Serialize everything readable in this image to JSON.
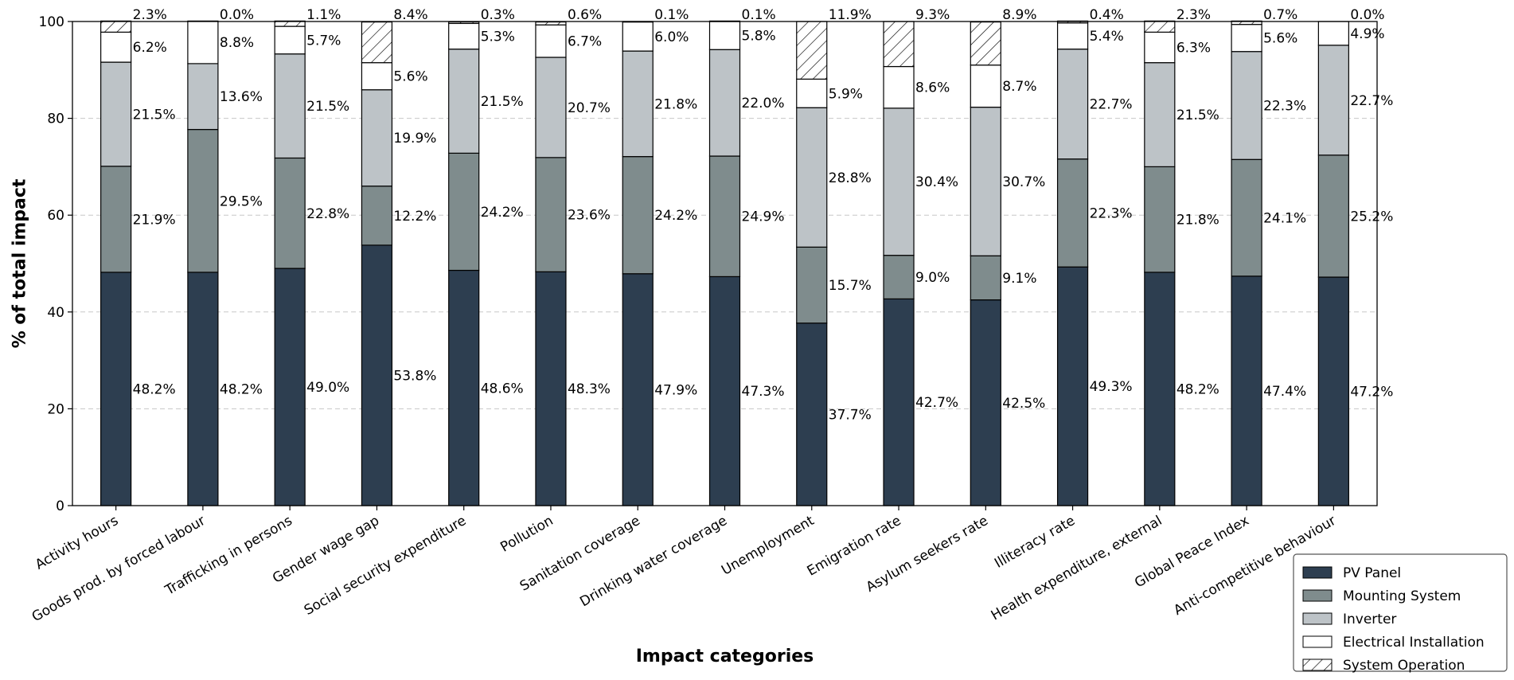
{
  "chart_data": {
    "type": "bar",
    "stacked": true,
    "title": "",
    "xlabel": "Impact categories",
    "ylabel": "% of total impact",
    "ylim": [
      0,
      100
    ],
    "yticks": [
      "0",
      "20",
      "40",
      "60",
      "80",
      "100"
    ],
    "grid": "y-dashed",
    "legend_position": "bottom-right",
    "categories": [
      "Activity hours",
      "Goods prod. by forced labour",
      "Trafficking in persons",
      "Gender wage gap",
      "Social security expenditure",
      "Pollution",
      "Sanitation coverage",
      "Drinking water coverage",
      "Unemployment",
      "Emigration rate",
      "Asylum seekers rate",
      "Illiteracy rate",
      "Health expenditure, external",
      "Global Peace Index",
      "Anti-competitive behaviour"
    ],
    "series": [
      {
        "name": "PV Panel",
        "color": "#2d3e50",
        "hatch": false,
        "values": [
          48.2,
          48.2,
          49.0,
          53.8,
          48.6,
          48.3,
          47.9,
          47.3,
          37.7,
          42.7,
          42.5,
          49.3,
          48.2,
          47.4,
          47.2
        ],
        "labels": [
          "48.2%",
          "48.2%",
          "49.0%",
          "53.8%",
          "48.6%",
          "48.3%",
          "47.9%",
          "47.3%",
          "37.7%",
          "42.7%",
          "42.5%",
          "49.3%",
          "48.2%",
          "47.4%",
          "47.2%"
        ]
      },
      {
        "name": "Mounting System",
        "color": "#7f8c8d",
        "hatch": false,
        "values": [
          21.9,
          29.5,
          22.8,
          12.2,
          24.2,
          23.6,
          24.2,
          24.9,
          15.7,
          9.0,
          9.1,
          22.3,
          21.8,
          24.1,
          25.2
        ],
        "labels": [
          "21.9%",
          "29.5%",
          "22.8%",
          "12.2%",
          "24.2%",
          "23.6%",
          "24.2%",
          "24.9%",
          "15.7%",
          "9.0%",
          "9.1%",
          "22.3%",
          "21.8%",
          "24.1%",
          "25.2%"
        ]
      },
      {
        "name": "Inverter",
        "color": "#bdc3c7",
        "hatch": false,
        "values": [
          21.5,
          13.6,
          21.5,
          19.9,
          21.5,
          20.7,
          21.8,
          22.0,
          28.8,
          30.4,
          30.7,
          22.7,
          21.5,
          22.3,
          22.7
        ],
        "labels": [
          "21.5%",
          "13.6%",
          "21.5%",
          "19.9%",
          "21.5%",
          "20.7%",
          "21.8%",
          "22.0%",
          "28.8%",
          "30.4%",
          "30.7%",
          "22.7%",
          "21.5%",
          "22.3%",
          "22.7%"
        ]
      },
      {
        "name": "Electrical Installation",
        "color": "#ffffff",
        "hatch": false,
        "values": [
          6.2,
          8.8,
          5.7,
          5.6,
          5.3,
          6.7,
          6.0,
          5.8,
          5.9,
          8.6,
          8.7,
          5.4,
          6.3,
          5.6,
          4.9
        ],
        "labels": [
          "6.2%",
          "8.8%",
          "5.7%",
          "5.6%",
          "5.3%",
          "6.7%",
          "6.0%",
          "5.8%",
          "5.9%",
          "8.6%",
          "8.7%",
          "5.4%",
          "6.3%",
          "5.6%",
          "4.9%"
        ]
      },
      {
        "name": "System Operation",
        "color": "#ffffff",
        "hatch": true,
        "values": [
          2.3,
          0.0,
          1.1,
          8.4,
          0.3,
          0.6,
          0.1,
          0.1,
          11.9,
          9.3,
          8.9,
          0.4,
          2.3,
          0.7,
          0.0
        ],
        "labels": [
          "2.3%",
          "0.0%",
          "1.1%",
          "8.4%",
          "0.3%",
          "0.6%",
          "0.1%",
          "0.1%",
          "11.9%",
          "9.3%",
          "8.9%",
          "0.4%",
          "2.3%",
          "0.7%",
          "0.0%"
        ]
      }
    ]
  }
}
